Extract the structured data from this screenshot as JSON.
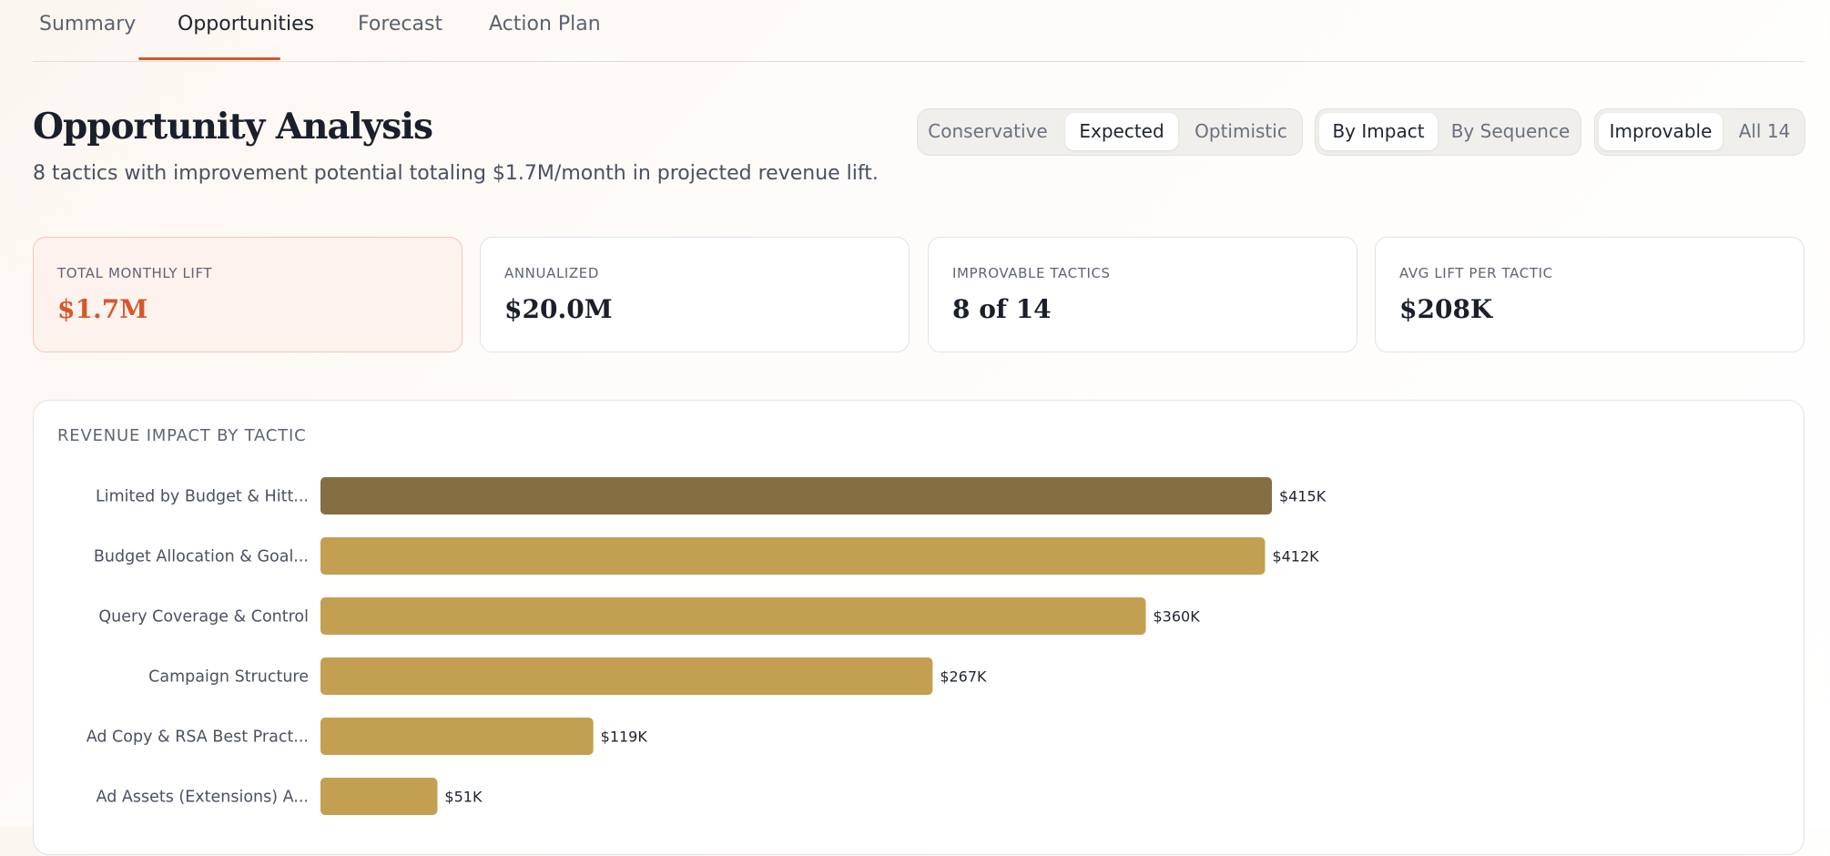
{
  "tabs": [
    {
      "label": "Summary",
      "active": false
    },
    {
      "label": "Opportunities",
      "active": true
    },
    {
      "label": "Forecast",
      "active": false
    },
    {
      "label": "Action Plan",
      "active": false
    }
  ],
  "header": {
    "title": "Opportunity Analysis",
    "subtitle": "8 tactics with improvement potential totaling $1.7M/month in projected revenue lift."
  },
  "scenario_toggle": {
    "options": [
      "Conservative",
      "Expected",
      "Optimistic"
    ],
    "selected": "Expected"
  },
  "sort_toggle": {
    "options": [
      "By Impact",
      "By Sequence"
    ],
    "selected": "By Impact"
  },
  "filter_toggle": {
    "options": [
      "Improvable",
      "All 14"
    ],
    "selected": "Improvable"
  },
  "kpis": [
    {
      "label": "TOTAL MONTHLY LIFT",
      "value": "$1.7M",
      "highlight": true
    },
    {
      "label": "ANNUALIZED",
      "value": "$20.0M",
      "highlight": false
    },
    {
      "label": "IMPROVABLE TACTICS",
      "value": "8 of 14",
      "highlight": false
    },
    {
      "label": "AVG LIFT PER TACTIC",
      "value": "$208K",
      "highlight": false
    }
  ],
  "colors": {
    "accent": "#d5582c",
    "bar_primary": "#856f42",
    "bar": "#c39f52"
  },
  "chart_data": {
    "type": "bar",
    "orientation": "horizontal",
    "title": "REVENUE IMPACT BY TACTIC",
    "categories": [
      "Limited by Budget & Hitt...",
      "Budget Allocation & Goal...",
      "Query Coverage & Control",
      "Campaign Structure",
      "Ad Copy & RSA Best Pract...",
      "Ad Assets (Extensions) A..."
    ],
    "values": [
      415,
      412,
      360,
      267,
      119,
      51
    ],
    "value_labels": [
      "$415K",
      "$412K",
      "$360K",
      "$267K",
      "$119K",
      "$51K"
    ],
    "unit": "$K",
    "highlight_index": 0,
    "grid": false,
    "legend": "none"
  }
}
